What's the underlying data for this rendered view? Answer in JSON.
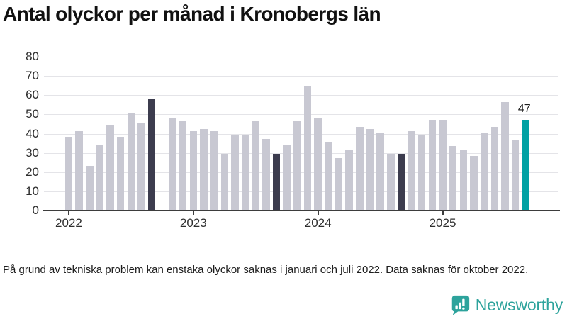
{
  "title": "Antal olyckor per månad i Kronobergs län",
  "footnote": "På grund av tekniska problem kan enstaka olyckor saknas i januari och juli 2022. Data saknas för oktober 2022.",
  "branding": {
    "name": "Newsworthy",
    "icon": "newsworthy-chart-bubble-icon",
    "color": "#2da39c"
  },
  "colors": {
    "bar_default": "#c8c8d2",
    "bar_dark": "#3c3c4e",
    "bar_accent": "#00a1a3",
    "gridline": "#e4e4e8",
    "axis": "#3d3d3d",
    "tick_label": "#2e2e2e",
    "annotation": "#1d1d1d"
  },
  "chart_data": {
    "type": "bar",
    "title": "Antal olyckor per månad i Kronobergs län",
    "xlabel": "",
    "ylabel": "",
    "ylim": [
      0,
      80
    ],
    "yticks": [
      0,
      10,
      20,
      30,
      40,
      50,
      60,
      70,
      80
    ],
    "grid": "horizontal",
    "legend": "none",
    "missing_months": [
      "2022-10"
    ],
    "highlight_dark_months": [
      "2022-09",
      "2023-09",
      "2024-09"
    ],
    "highlight_accent_month": "2025-09",
    "months": [
      {
        "m": "2022-01",
        "v": 38,
        "style": "default"
      },
      {
        "m": "2022-02",
        "v": 41,
        "style": "default"
      },
      {
        "m": "2022-03",
        "v": 23,
        "style": "default"
      },
      {
        "m": "2022-04",
        "v": 34,
        "style": "default"
      },
      {
        "m": "2022-05",
        "v": 44,
        "style": "default"
      },
      {
        "m": "2022-06",
        "v": 38,
        "style": "default"
      },
      {
        "m": "2022-07",
        "v": 50,
        "style": "default"
      },
      {
        "m": "2022-08",
        "v": 45,
        "style": "default"
      },
      {
        "m": "2022-09",
        "v": 58,
        "style": "dark"
      },
      {
        "m": "2022-10",
        "v": null,
        "style": "missing"
      },
      {
        "m": "2022-11",
        "v": 48,
        "style": "default"
      },
      {
        "m": "2022-12",
        "v": 46,
        "style": "default"
      },
      {
        "m": "2023-01",
        "v": 41,
        "style": "default"
      },
      {
        "m": "2023-02",
        "v": 42,
        "style": "default"
      },
      {
        "m": "2023-03",
        "v": 41,
        "style": "default"
      },
      {
        "m": "2023-04",
        "v": 29,
        "style": "default"
      },
      {
        "m": "2023-05",
        "v": 39,
        "style": "default"
      },
      {
        "m": "2023-06",
        "v": 39,
        "style": "default"
      },
      {
        "m": "2023-07",
        "v": 46,
        "style": "default"
      },
      {
        "m": "2023-08",
        "v": 37,
        "style": "default"
      },
      {
        "m": "2023-09",
        "v": 29,
        "style": "dark"
      },
      {
        "m": "2023-10",
        "v": 34,
        "style": "default"
      },
      {
        "m": "2023-11",
        "v": 46,
        "style": "default"
      },
      {
        "m": "2023-12",
        "v": 64,
        "style": "default"
      },
      {
        "m": "2024-01",
        "v": 48,
        "style": "default"
      },
      {
        "m": "2024-02",
        "v": 35,
        "style": "default"
      },
      {
        "m": "2024-03",
        "v": 27,
        "style": "default"
      },
      {
        "m": "2024-04",
        "v": 31,
        "style": "default"
      },
      {
        "m": "2024-05",
        "v": 43,
        "style": "default"
      },
      {
        "m": "2024-06",
        "v": 42,
        "style": "default"
      },
      {
        "m": "2024-07",
        "v": 40,
        "style": "default"
      },
      {
        "m": "2024-08",
        "v": 29,
        "style": "default"
      },
      {
        "m": "2024-09",
        "v": 29,
        "style": "dark"
      },
      {
        "m": "2024-10",
        "v": 41,
        "style": "default"
      },
      {
        "m": "2024-11",
        "v": 39,
        "style": "default"
      },
      {
        "m": "2024-12",
        "v": 47,
        "style": "default"
      },
      {
        "m": "2025-01",
        "v": 47,
        "style": "default"
      },
      {
        "m": "2025-02",
        "v": 33,
        "style": "default"
      },
      {
        "m": "2025-03",
        "v": 31,
        "style": "default"
      },
      {
        "m": "2025-04",
        "v": 28,
        "style": "default"
      },
      {
        "m": "2025-05",
        "v": 40,
        "style": "default"
      },
      {
        "m": "2025-06",
        "v": 43,
        "style": "default"
      },
      {
        "m": "2025-07",
        "v": 56,
        "style": "default"
      },
      {
        "m": "2025-08",
        "v": 36,
        "style": "default"
      },
      {
        "m": "2025-09",
        "v": 47,
        "style": "accent"
      }
    ],
    "year_ticks": [
      {
        "label": "2022",
        "index": 0
      },
      {
        "label": "2023",
        "index": 12
      },
      {
        "label": "2024",
        "index": 24
      },
      {
        "label": "2025",
        "index": 36
      }
    ],
    "annotation": {
      "text": "47",
      "index": 44
    }
  }
}
